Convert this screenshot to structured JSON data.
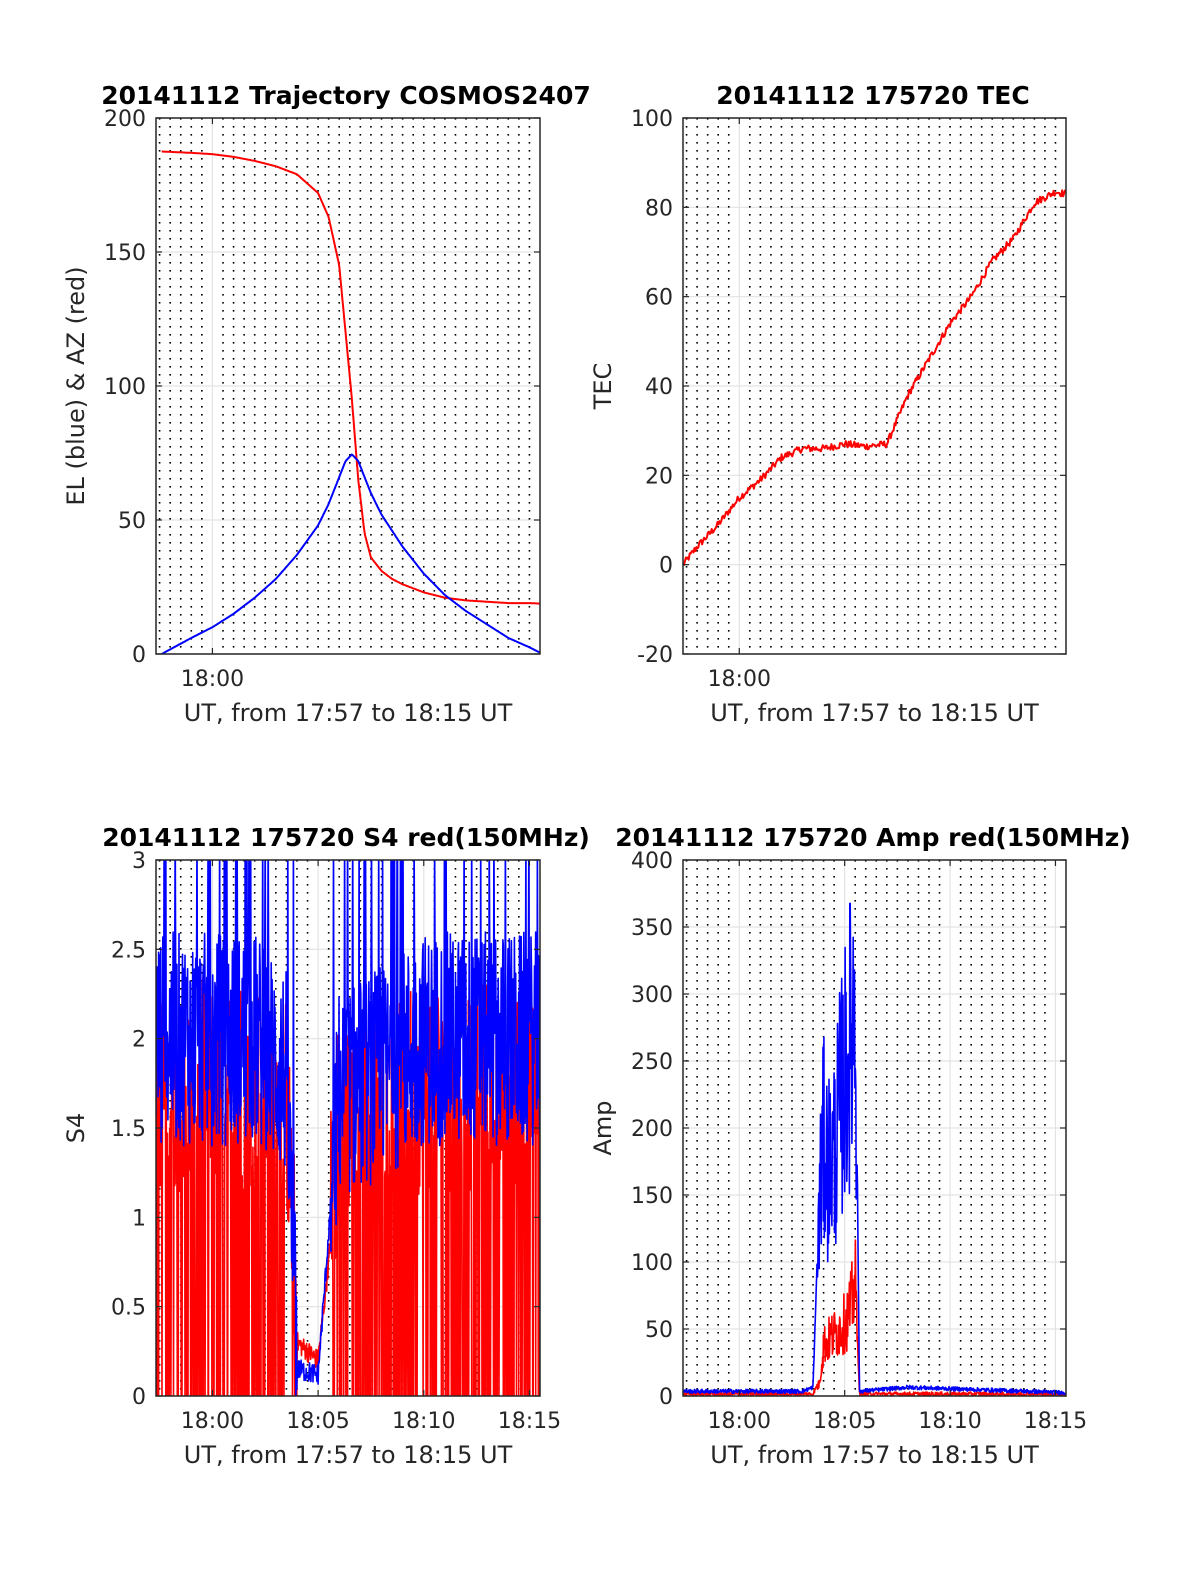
{
  "chart_data": [
    {
      "type": "line",
      "title": "20141112 Trajectory COSMOS2407",
      "xlabel": "UT, from 17:57 to 18:15 UT",
      "ylabel": "EL (blue) & AZ (red)",
      "xlim": [
        -2.67,
        15.5
      ],
      "ylim": [
        0,
        200
      ],
      "xticks": [
        {
          "value": 0,
          "label": "18:00"
        }
      ],
      "yticks": [
        0,
        50,
        100,
        150,
        200
      ],
      "grid": true,
      "series": [
        {
          "color": "#ff0000",
          "x": [
            -2.4,
            -1,
            0,
            1,
            2,
            3,
            4,
            5,
            5.5,
            6,
            6.3,
            6.6,
            6.9,
            7.2,
            7.5,
            8,
            8.5,
            9,
            10,
            11,
            12,
            13,
            14,
            15,
            15.5
          ],
          "y": [
            187.5,
            187,
            186.5,
            185.5,
            184,
            182,
            179,
            172,
            163,
            145,
            120,
            95,
            65,
            45,
            36,
            31,
            28,
            26,
            23,
            21,
            20,
            19.5,
            19,
            19,
            18.8
          ]
        },
        {
          "color": "#0000ff",
          "x": [
            -2.4,
            -1,
            0,
            1,
            2,
            3,
            4,
            5,
            5.5,
            6,
            6.3,
            6.6,
            6.9,
            7.2,
            7.5,
            8,
            9,
            10,
            11,
            12,
            13,
            14,
            15,
            15.5
          ],
          "y": [
            0,
            6,
            10,
            15,
            21,
            28,
            37,
            48,
            56,
            66,
            72,
            74.5,
            72,
            66,
            60,
            52,
            40,
            30,
            22,
            16,
            11,
            6,
            2.5,
            0.5
          ]
        }
      ]
    },
    {
      "type": "line",
      "title": "20141112 175720 TEC",
      "xlabel": "UT, from 17:57 to 18:15 UT",
      "ylabel": "TEC",
      "xlim": [
        -2.67,
        15.5
      ],
      "ylim": [
        -20,
        100
      ],
      "xticks": [
        {
          "value": 0,
          "label": "18:00"
        }
      ],
      "yticks": [
        -20,
        0,
        20,
        40,
        60,
        80,
        100
      ],
      "grid": true,
      "series": [
        {
          "color": "#ff0000",
          "x": [
            -2.67,
            -2,
            -1,
            0,
            1,
            2,
            3,
            4,
            5,
            6,
            7,
            8,
            9,
            10,
            11,
            12,
            13,
            14,
            15,
            15.5
          ],
          "y": [
            0,
            4,
            9,
            15,
            19,
            24,
            26,
            26,
            27,
            26.5,
            27,
            38,
            46,
            54,
            60,
            68,
            73,
            81,
            83.5,
            83
          ]
        }
      ]
    },
    {
      "type": "line",
      "title": "20141112 175720 S4 red(150MHz)",
      "xlabel": "UT, from 17:57 to 18:15 UT",
      "ylabel": "S4",
      "xlim": [
        -2.67,
        15.5
      ],
      "ylim": [
        0,
        3
      ],
      "xticks": [
        {
          "value": 0,
          "label": "18:00"
        },
        {
          "value": 5,
          "label": "18:05"
        },
        {
          "value": 10,
          "label": "18:10"
        },
        {
          "value": 15,
          "label": "18:15"
        }
      ],
      "yticks": [
        0,
        0.5,
        1,
        1.5,
        2,
        2.5,
        3
      ],
      "grid": true,
      "series": [
        {
          "color": "#ff0000",
          "x": [
            -2.67,
            0,
            2,
            3.5,
            4,
            5,
            6,
            8,
            10,
            12,
            15.5
          ],
          "y": [
            1.5,
            1.5,
            1.5,
            1.4,
            0.3,
            0.2,
            1.3,
            1.4,
            1.5,
            1.5,
            1.5
          ]
        },
        {
          "color": "#0000ff",
          "x": [
            -2.67,
            0,
            2,
            3.5,
            4,
            5,
            6,
            8,
            10,
            12,
            15.5
          ],
          "y": [
            2.0,
            2.0,
            2.0,
            1.8,
            0.15,
            0.12,
            1.7,
            1.8,
            2.0,
            2.0,
            2.0
          ]
        }
      ]
    },
    {
      "type": "line",
      "title": "20141112 175720 Amp red(150MHz)",
      "xlabel": "UT, from 17:57 to 18:15 UT",
      "ylabel": "Amp",
      "xlim": [
        -2.67,
        15.5
      ],
      "ylim": [
        0,
        400
      ],
      "xticks": [
        {
          "value": 0,
          "label": "18:00"
        },
        {
          "value": 5,
          "label": "18:05"
        },
        {
          "value": 10,
          "label": "18:10"
        },
        {
          "value": 15,
          "label": "18:15"
        }
      ],
      "yticks": [
        0,
        50,
        100,
        150,
        200,
        250,
        300,
        350,
        400
      ],
      "grid": true,
      "series": [
        {
          "color": "#ff0000",
          "x": [
            -2.67,
            3.5,
            3.8,
            4.0,
            4.3,
            4.6,
            4.9,
            5.1,
            5.3,
            5.5,
            5.7,
            15.5
          ],
          "y": [
            0,
            0,
            10,
            40,
            45,
            50,
            55,
            60,
            70,
            90,
            0,
            0
          ]
        },
        {
          "color": "#0000ff",
          "x": [
            -2.67,
            3.0,
            3.5,
            3.8,
            4.0,
            4.2,
            4.5,
            4.8,
            5.0,
            5.2,
            5.4,
            5.5,
            5.7,
            8,
            15.5
          ],
          "y": [
            2,
            2,
            5,
            150,
            200,
            180,
            190,
            230,
            250,
            270,
            300,
            330,
            2,
            5,
            1
          ]
        }
      ]
    }
  ]
}
